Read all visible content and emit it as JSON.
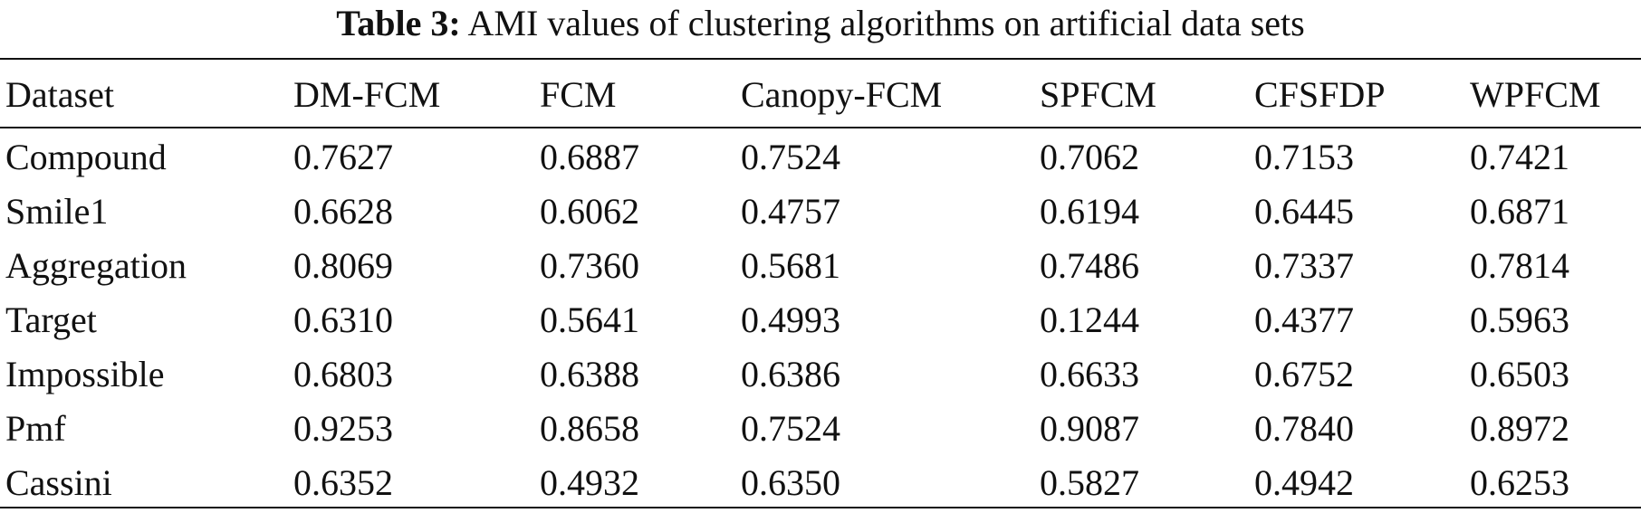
{
  "caption": {
    "label": "Table 3:",
    "text": "AMI values of clustering algorithms on artificial data sets"
  },
  "table": {
    "columns": [
      "Dataset",
      "DM-FCM",
      "FCM",
      "Canopy-FCM",
      "SPFCM",
      "CFSFDP",
      "WPFCM"
    ],
    "rows": [
      {
        "dataset": "Compound",
        "values": [
          "0.7627",
          "0.6887",
          "0.7524",
          "0.7062",
          "0.7153",
          "0.7421"
        ],
        "bold_index": 0
      },
      {
        "dataset": "Smile1",
        "values": [
          "0.6628",
          "0.6062",
          "0.4757",
          "0.6194",
          "0.6445",
          "0.6871"
        ],
        "bold_index": 5
      },
      {
        "dataset": "Aggregation",
        "values": [
          "0.8069",
          "0.7360",
          "0.5681",
          "0.7486",
          "0.7337",
          "0.7814"
        ],
        "bold_index": 0
      },
      {
        "dataset": "Target",
        "values": [
          "0.6310",
          "0.5641",
          "0.4993",
          "0.1244",
          "0.4377",
          "0.5963"
        ],
        "bold_index": 0
      },
      {
        "dataset": "Impossible",
        "values": [
          "0.6803",
          "0.6388",
          "0.6386",
          "0.6633",
          "0.6752",
          "0.6503"
        ],
        "bold_index": 0
      },
      {
        "dataset": "Pmf",
        "values": [
          "0.9253",
          "0.8658",
          "0.7524",
          "0.9087",
          "0.7840",
          "0.8972"
        ],
        "bold_index": 0
      },
      {
        "dataset": "Cassini",
        "values": [
          "0.6352",
          "0.4932",
          "0.6350",
          "0.5827",
          "0.4942",
          "0.6253"
        ],
        "bold_index": 0
      }
    ]
  }
}
